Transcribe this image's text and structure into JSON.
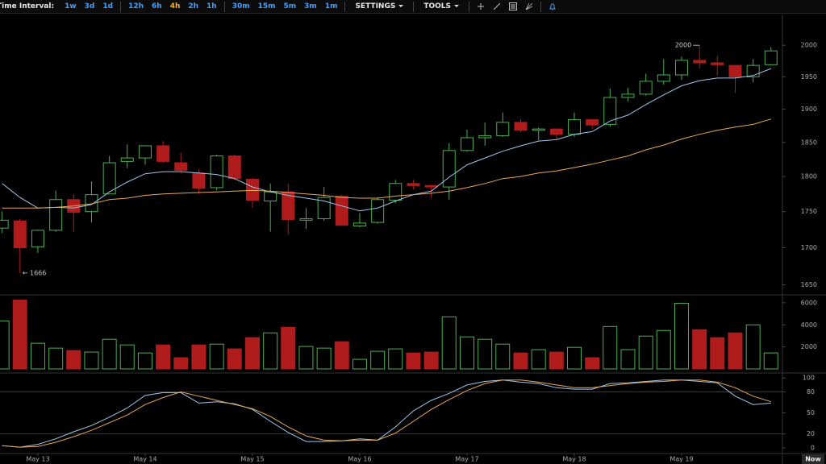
{
  "toolbar": {
    "label": "Time Interval:",
    "intervals": [
      [
        "1w",
        "3d",
        "1d"
      ],
      [
        "12h",
        "6h",
        "4h",
        "2h",
        "1h"
      ],
      [
        "30m",
        "15m",
        "5m",
        "3m",
        "1m"
      ]
    ],
    "active": "4h",
    "menus": [
      "SETTINGS",
      "TOOLS"
    ]
  },
  "chart_data": {
    "type": "candlestick",
    "log": true,
    "up_color": "#4caf50",
    "down_color": "#b01c1c",
    "x": [
      12.667,
      12.833,
      13,
      13.167,
      13.333,
      13.5,
      13.667,
      13.833,
      14,
      14.167,
      14.333,
      14.5,
      14.667,
      14.833,
      15,
      15.167,
      15.333,
      15.5,
      15.667,
      15.833,
      16,
      16.167,
      16.333,
      16.5,
      16.667,
      16.833,
      17,
      17.167,
      17.333,
      17.5,
      17.667,
      17.833,
      18,
      18.167,
      18.333,
      18.5,
      18.667,
      18.833,
      19,
      19.167,
      19.333,
      19.5,
      19.667,
      19.833
    ],
    "open": [
      1727,
      1737,
      1701,
      1724,
      1767,
      1750,
      1775,
      1822,
      1827,
      1845,
      1820,
      1805,
      1784,
      1830,
      1796,
      1765,
      1778,
      1738,
      1740,
      1772,
      1730,
      1735,
      1766,
      1790,
      1787,
      1785,
      1838,
      1857,
      1860,
      1880,
      1868,
      1870,
      1862,
      1884,
      1877,
      1918,
      1923,
      1943,
      1953,
      1976,
      1972,
      1968,
      1950,
      1969
    ],
    "high": [
      1750,
      1740,
      1725,
      1780,
      1775,
      1793,
      1830,
      1847,
      1845,
      1852,
      1835,
      1810,
      1832,
      1832,
      1798,
      1790,
      1790,
      1755,
      1785,
      1774,
      1748,
      1770,
      1795,
      1795,
      1788,
      1849,
      1869,
      1880,
      1895,
      1885,
      1872,
      1870,
      1895,
      1884,
      1932,
      1933,
      1955,
      1978,
      1982,
      2000,
      1983,
      1968,
      1978,
      1997
    ],
    "low": [
      1720,
      1666,
      1693,
      1722,
      1722,
      1735,
      1775,
      1812,
      1817,
      1820,
      1805,
      1775,
      1780,
      1795,
      1755,
      1722,
      1718,
      1726,
      1737,
      1730,
      1728,
      1733,
      1762,
      1782,
      1770,
      1767,
      1836,
      1845,
      1858,
      1865,
      1853,
      1855,
      1858,
      1870,
      1873,
      1912,
      1921,
      1938,
      1945,
      1963,
      1952,
      1925,
      1941,
      1968
    ],
    "close": [
      1738,
      1700,
      1724,
      1767,
      1749,
      1774,
      1820,
      1827,
      1845,
      1822,
      1809,
      1783,
      1830,
      1797,
      1766,
      1778,
      1739,
      1740,
      1770,
      1731,
      1734,
      1767,
      1790,
      1787,
      1785,
      1838,
      1857,
      1860,
      1880,
      1868,
      1870,
      1862,
      1884,
      1876,
      1918,
      1923,
      1943,
      1953,
      1976,
      1972,
      1969,
      1950,
      1968,
      1991
    ],
    "ylim": [
      1638,
      2050
    ],
    "yticks": [
      1650,
      1700,
      1750,
      1800,
      1850,
      1900,
      1950,
      2000
    ],
    "xlim": [
      12.647,
      19.94
    ],
    "xticks": [
      {
        "value": 13,
        "label": "May 13"
      },
      {
        "value": 14,
        "label": "May 14"
      },
      {
        "value": 15,
        "label": "May 15"
      },
      {
        "value": 16,
        "label": "May 16"
      },
      {
        "value": 17,
        "label": "May 17"
      },
      {
        "value": 18,
        "label": "May 18"
      },
      {
        "value": 19,
        "label": "May 19"
      }
    ],
    "x_end_label": "Now",
    "annotations": [
      {
        "value": 2000,
        "label": "2000"
      },
      {
        "value": 1666,
        "label": "← 1666"
      }
    ],
    "moving_averages": [
      {
        "color": "#9cc8e8",
        "values": [
          1790,
          1770,
          1755,
          1756,
          1755,
          1760,
          1778,
          1792,
          1804,
          1807,
          1807,
          1805,
          1803,
          1797,
          1785,
          1778,
          1773,
          1769,
          1765,
          1758,
          1751,
          1755,
          1765,
          1774,
          1779,
          1799,
          1817,
          1827,
          1837,
          1845,
          1852,
          1854,
          1862,
          1866,
          1882,
          1891,
          1907,
          1922,
          1936,
          1944,
          1948,
          1948,
          1952,
          1963
        ]
      },
      {
        "color": "#e8a858",
        "values": [
          1755,
          1755,
          1755,
          1756,
          1758,
          1761,
          1767,
          1769,
          1773,
          1775,
          1776,
          1777,
          1778,
          1779,
          1780,
          1779,
          1777,
          1775,
          1773,
          1770,
          1769,
          1769,
          1772,
          1774,
          1776,
          1779,
          1784,
          1790,
          1797,
          1800,
          1805,
          1808,
          1813,
          1818,
          1824,
          1830,
          1839,
          1846,
          1855,
          1862,
          1868,
          1873,
          1877,
          1885
        ]
      }
    ],
    "volume": {
      "ylim": [
        0,
        6650
      ],
      "yticks": [
        2000,
        4000,
        6000
      ],
      "values": [
        4360,
        6250,
        2330,
        1890,
        1670,
        1530,
        2690,
        2180,
        1450,
        2180,
        1020,
        2180,
        2250,
        1820,
        2840,
        3270,
        3780,
        2040,
        1890,
        2470,
        870,
        1600,
        1820,
        1450,
        1530,
        4730,
        2910,
        2690,
        2250,
        1450,
        1750,
        1530,
        1960,
        1020,
        3850,
        1750,
        2980,
        3490,
        5960,
        3560,
        2840,
        3270,
        4000,
        1450
      ]
    },
    "stochastic": {
      "ylim": [
        -7,
        106
      ],
      "yticks": [
        0,
        20,
        50,
        80,
        100
      ],
      "levels": [
        20,
        80
      ],
      "series": [
        {
          "color": "#9cc8e8",
          "values": [
            3,
            1,
            5,
            13,
            23,
            32,
            44,
            57,
            75,
            79,
            79,
            64,
            66,
            63,
            55,
            38,
            22,
            9,
            9,
            10,
            13,
            11,
            30,
            53,
            68,
            78,
            90,
            95,
            97,
            94,
            92,
            86,
            84,
            84,
            92,
            93,
            95,
            97,
            97,
            95,
            93,
            74,
            62,
            64
          ]
        },
        {
          "color": "#e8a858",
          "values": [
            3,
            1,
            2,
            8,
            16,
            25,
            36,
            47,
            62,
            72,
            80,
            74,
            68,
            62,
            56,
            45,
            30,
            17,
            11,
            10,
            11,
            11,
            21,
            38,
            55,
            69,
            82,
            92,
            97,
            97,
            94,
            90,
            86,
            86,
            89,
            92,
            94,
            95,
            97,
            97,
            94,
            86,
            74,
            66
          ]
        }
      ]
    }
  }
}
